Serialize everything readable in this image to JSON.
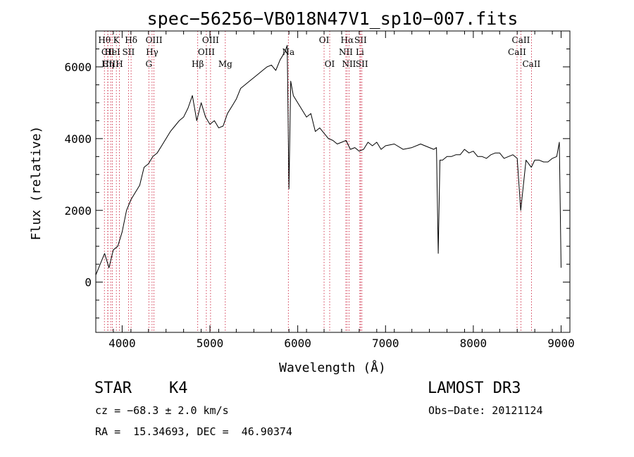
{
  "chart_data": {
    "type": "line",
    "title": "spec−56256−VB018N47V1_sp10−007.fits",
    "xlabel": "Wavelength (Å)",
    "ylabel": "Flux (relative)",
    "xlim": [
      3700,
      9100
    ],
    "ylim": [
      -1400,
      7000
    ],
    "xticks": [
      4000,
      5000,
      6000,
      7000,
      8000,
      9000
    ],
    "xtick_labels": [
      "4000",
      "5000",
      "6000",
      "7000",
      "8000",
      "9000"
    ],
    "yticks": [
      0,
      2000,
      4000,
      6000
    ],
    "ytick_labels": [
      "0",
      "2000",
      "4000",
      "6000"
    ],
    "grid": false,
    "series": [
      {
        "name": "flux",
        "x": [
          3700,
          3750,
          3800,
          3850,
          3900,
          3950,
          4000,
          4050,
          4100,
          4150,
          4200,
          4250,
          4300,
          4350,
          4400,
          4450,
          4500,
          4550,
          4600,
          4650,
          4700,
          4750,
          4800,
          4850,
          4900,
          4950,
          5000,
          5050,
          5100,
          5150,
          5200,
          5250,
          5300,
          5350,
          5400,
          5450,
          5500,
          5550,
          5600,
          5650,
          5700,
          5750,
          5800,
          5850,
          5880,
          5900,
          5920,
          5950,
          6000,
          6050,
          6100,
          6150,
          6200,
          6250,
          6300,
          6350,
          6400,
          6450,
          6500,
          6550,
          6600,
          6650,
          6700,
          6750,
          6800,
          6850,
          6900,
          6950,
          7000,
          7100,
          7200,
          7300,
          7400,
          7500,
          7550,
          7580,
          7600,
          7620,
          7650,
          7700,
          7750,
          7800,
          7850,
          7900,
          7950,
          8000,
          8050,
          8100,
          8150,
          8200,
          8250,
          8300,
          8350,
          8400,
          8450,
          8500,
          8540,
          8600,
          8660,
          8700,
          8750,
          8800,
          8850,
          8900,
          8950,
          8980,
          9000
        ],
        "y": [
          200,
          500,
          800,
          400,
          900,
          1000,
          1400,
          2000,
          2300,
          2500,
          2700,
          3200,
          3300,
          3500,
          3600,
          3800,
          4000,
          4200,
          4350,
          4500,
          4600,
          4850,
          5200,
          4500,
          5000,
          4600,
          4400,
          4500,
          4300,
          4350,
          4700,
          4900,
          5100,
          5400,
          5500,
          5600,
          5700,
          5800,
          5900,
          6000,
          6050,
          5900,
          6200,
          6400,
          6600,
          2600,
          5600,
          5200,
          5000,
          4800,
          4600,
          4700,
          4200,
          4300,
          4150,
          4000,
          3950,
          3850,
          3900,
          3950,
          3700,
          3750,
          3650,
          3700,
          3900,
          3800,
          3900,
          3700,
          3800,
          3850,
          3700,
          3750,
          3850,
          3750,
          3700,
          3750,
          800,
          3400,
          3400,
          3500,
          3500,
          3550,
          3550,
          3700,
          3600,
          3650,
          3500,
          3500,
          3450,
          3550,
          3600,
          3600,
          3450,
          3500,
          3550,
          3450,
          2000,
          3400,
          3200,
          3400,
          3400,
          3350,
          3350,
          3450,
          3500,
          3900,
          400
        ]
      }
    ],
    "lines": [
      {
        "name": "Hθ",
        "x": 3798,
        "label_row": 1
      },
      {
        "name": "CII",
        "x": 3838,
        "label_row": 2
      },
      {
        "name": "Hη",
        "x": 3836,
        "label_row": 3
      },
      {
        "name": "CIII",
        "x": 3870,
        "label_row": 3
      },
      {
        "name": "K",
        "x": 3934,
        "label_row": 1
      },
      {
        "name": "HeI",
        "x": 3889,
        "label_row": 2
      },
      {
        "name": "H",
        "x": 3969,
        "label_row": 3
      },
      {
        "name": "SII",
        "x": 4072,
        "label_row": 2
      },
      {
        "name": "Hδ",
        "x": 4102,
        "label_row": 1
      },
      {
        "name": "OIII",
        "x": 4363,
        "label_row": 1
      },
      {
        "name": "Hγ",
        "x": 4341,
        "label_row": 2
      },
      {
        "name": "G",
        "x": 4304,
        "label_row": 3
      },
      {
        "name": "Hβ",
        "x": 4861,
        "label_row": 3
      },
      {
        "name": "OIII",
        "x": 4959,
        "label_row": 2
      },
      {
        "name": "OIII",
        "x": 5007,
        "label_row": 1
      },
      {
        "name": "Mg",
        "x": 5175,
        "label_row": 3
      },
      {
        "name": "Na",
        "x": 5893,
        "label_row": 2
      },
      {
        "name": "OI",
        "x": 6300,
        "label_row": 1
      },
      {
        "name": "OI",
        "x": 6364,
        "label_row": 3
      },
      {
        "name": "Hα",
        "x": 6563,
        "label_row": 1
      },
      {
        "name": "NII",
        "x": 6548,
        "label_row": 2
      },
      {
        "name": "NII",
        "x": 6584,
        "label_row": 3
      },
      {
        "name": "SII",
        "x": 6716,
        "label_row": 1
      },
      {
        "name": "Li",
        "x": 6708,
        "label_row": 2
      },
      {
        "name": "SII",
        "x": 6731,
        "label_row": 3
      },
      {
        "name": "CaII",
        "x": 8542,
        "label_row": 1
      },
      {
        "name": "CaII",
        "x": 8498,
        "label_row": 2
      },
      {
        "name": "CaII",
        "x": 8662,
        "label_row": 3
      }
    ]
  },
  "info": {
    "class": "STAR",
    "subclass": "K4",
    "cz": "cz = −68.3 ± 2.0 km/s",
    "coords": "RA =  15.34693, DEC =  46.90374",
    "survey": "LAMOST DR3",
    "obs_date": "Obs−Date: 20121124"
  }
}
